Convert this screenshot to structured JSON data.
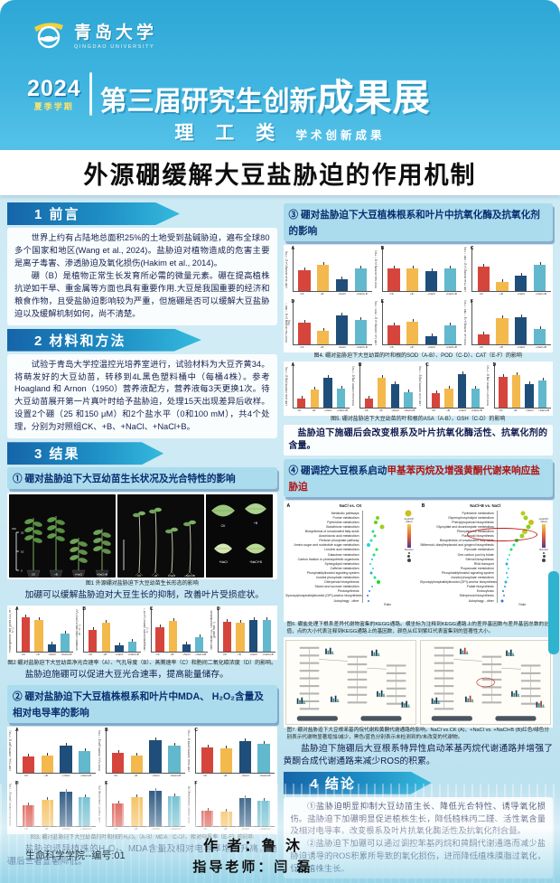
{
  "header": {
    "university_cn": "青岛大学",
    "university_en": "QINGDAO UNIVERSITY",
    "year": "2024",
    "semester": "夏季学期",
    "event_line": "第三届研究生创新",
    "event_line_big": "成果展",
    "category": "理 工 类",
    "category_sub": "学术创新成果"
  },
  "poster_title": "外源硼缓解大豆盐胁迫的作用机制",
  "intro": {
    "banner": "1 前言",
    "p1": "世界上约有占陆地总面积25%的土地受到盐碱胁迫，遍布全球80多个国家和地区(Wang et al., 2024)。盐胁迫对植物造成的危害主要是离子毒害、渗透胁迫及氧化损伤(Hakim et al., 2014)。",
    "p2": "硼（B）是植物正常生长发育所必需的微量元素。硼在提高植株抗逆如干旱、重金属等方面也具有重要作用.大豆是我国重要的经济和粮食作物，且受盐胁迫影响较为严重，但施硼是否可以缓解大豆盐胁迫以及缓解机制如何，尚不清楚。"
  },
  "methods": {
    "banner": "2 材料和方法",
    "p1": "试验于青岛大学控温控光培养室进行，试验材料为大豆齐黄34。将萌发好的大豆幼苗，转移到4L黑色塑料桶中（每桶4株）。参考Hoagland 和 Arnon（1950）营养液配方，营养液每3天更换1次。待大豆幼苗展开第一片真叶时给予盐胁迫，处理15天出现差异后收样。设置2个硼（25 和150 μM）和2个盐水平（0和100 mM），共4个处理，分别为对照组CK、+B、+NaCl、+NaCl+B。"
  },
  "results_banner": "3 结果",
  "treatments": [
    "CK",
    "+B",
    "+NaCl",
    "+NaCl+B"
  ],
  "r1": {
    "title": "① 硼对盐胁迫下大豆幼苗生长状况及光合特性的影响",
    "fig1_caption": "图1 外源硼对盐胁迫下大豆幼苗生长形态的影响",
    "note1": "加硼可以缓解盐胁迫对大豆生长的抑制，改善叶片受损症状。",
    "fig2_caption": "图2 硼对盐胁迫下大豆幼苗净光合速率（A）、气孔导度（B）、蒸腾速率（C）和胞间二氧化碳浓度（D）的影响。",
    "note2": "盐胁迫施硼可以促进大豆光合速率，提高能量储存。"
  },
  "r2": {
    "title": "② 硼对盐胁迫下大豆植株根系和叶片中MDA、 H₂O₂含量及相对电导率的影响",
    "fig3_caption": "图3. 硼对盐胁迫下大豆幼苗的叶和根的H₂O₂（A-B）MDA（C-D）、相对电导率（E-F）的影响",
    "note": "盐胁迫诱导植株的H₂O₂、MDA含量及相对电导率增加升高，施硼后三者显著降低。"
  },
  "r3": {
    "title": "③ 硼对盐胁迫下大豆植株根系和叶片中抗氧化酶及抗氧化剂的影响",
    "fig4_caption": "图4. 硼对盐胁迫下大豆幼苗的叶和根的SOD（A-B）、POD（C-D）、CAT（E-F）的影响",
    "fig5_caption": "图5. 硼对盐胁迫下大豆幼苗的叶和根的ASA（A-B）、GSH（C-D）的影响",
    "note": "盐胁迫下施硼后会改变根系及叶片抗氧化酶活性、抗氧化剂的含量。"
  },
  "r4": {
    "title_prefix": "④ 硼调控大豆根系启动",
    "title_red": "甲基苯丙烷及增强黄酮代谢来响应盐胁迫",
    "fig6_caption": "图6. 硼盐处理下根系差异代谢物富集的KEGG通路。横坐标为注释到KEGG通路上的差异基因数与差异基因总数的比值，点的大小代表注释到KEGG通路上的基因数，颜色从红到紫红代表富集到的显著性大小。",
    "fig7_caption": "图7. 硼对盐胁迫下大豆根苯基丙烷代谢和黄酮代谢通路的影响。NaCl vs.CK (A)、+NaCl vs. +NaCl+B (B)红色/绿色分别表示代谢物显著增加/减少，黑色/蓝色分别表示未检测到的/未改变的代谢物。",
    "note": "盐胁迫下施硼后大豆根系特异性启动苯基丙烷代谢通路并增强了黄酮合成代谢通路来减少ROS的积累。"
  },
  "conclusion": {
    "banner": "4 结论",
    "p1": "①盐胁迫明显抑制大豆幼苗生长、降低光合特性、诱导氧化损伤。盐胁迫下加硼明显促进植株生长，降低植株丙二醛、活性氧含量及相对电导率，改变根系及叶片抗氧化酶活性及抗氧化剂含量。",
    "p2": "②盐胁迫下加硼可以通过调控苯基丙烷和黄酮代谢通路而减少盐胁迫诱导的ROS积累所导致的氧化损伤，进而降低植株膜脂过氧化，促进植株生长。"
  },
  "footer": {
    "author_label": "作  者：",
    "author": "鲁 沐",
    "advisor_label": "指导老师：",
    "advisor": "闫 磊",
    "college": "生命科学学院--编号:01"
  },
  "treatment_colors": [
    "#d6453c",
    "#f3b94d",
    "#1f4e7a",
    "#62b8cc"
  ],
  "chart_data": [
    {
      "id": "fig2",
      "type": "bar",
      "categories": [
        "CK",
        "+B",
        "+NaCl",
        "+NaCl+B"
      ],
      "panels": [
        {
          "letter": "A",
          "ylabel": "Photosynthetic rate (μmol CO₂ m⁻² s⁻¹)",
          "ymax": 4,
          "values": [
            3.5,
            3.3,
            0.7,
            1.9
          ]
        },
        {
          "letter": "B",
          "ylabel": "Stomatal conductance (mol H₂O m⁻² s⁻¹)",
          "ymax": 0.08,
          "values": [
            0.045,
            0.06,
            0.013,
            0.02
          ]
        },
        {
          "letter": "C",
          "ylabel": "Transpiration rate (mmol H₂O m⁻² s⁻¹)",
          "ymax": 0.8,
          "values": [
            0.5,
            0.64,
            0.15,
            0.3
          ]
        },
        {
          "letter": "D",
          "ylabel": "Intercellular CO₂ concentration (μmol mol⁻¹)",
          "ymax": 400,
          "values": [
            310,
            295,
            330,
            330
          ]
        }
      ]
    },
    {
      "id": "fig3",
      "type": "bar",
      "categories": [
        "CK",
        "+B",
        "+NaCl",
        "+NaCl+B"
      ],
      "panels": [
        {
          "letter": "A",
          "ylabel": "Leaf H₂O₂ content (μM g⁻¹ FW)",
          "ymax": 10,
          "values": [
            4.2,
            4.4,
            7.0,
            5.6
          ]
        },
        {
          "letter": "B",
          "ylabel": "Root H₂O₂ content (μM g⁻¹ FW)",
          "ymax": 12.5,
          "values": [
            6.2,
            5.6,
            10.4,
            8.6
          ]
        },
        {
          "letter": "C",
          "ylabel": "Leaf MDA content (nmol g⁻¹ FW)",
          "ymax": 4,
          "values": [
            2.6,
            2.5,
            3.2,
            3.0
          ]
        },
        {
          "letter": "D",
          "ylabel": "Root MDA content (nmol g⁻¹ FW)",
          "ymax": 1.2,
          "values": [
            0.65,
            0.8,
            1.05,
            0.9
          ]
        },
        {
          "letter": "E",
          "ylabel": "Leaf relative conductivity (%)",
          "ymax": 30,
          "values": [
            17,
            22,
            27,
            23
          ]
        },
        {
          "letter": "F",
          "ylabel": "Root relative conductivity (%)",
          "ymax": 80,
          "values": [
            32,
            30,
            57,
            52
          ]
        }
      ]
    },
    {
      "id": "fig4",
      "type": "bar",
      "categories": [
        "CK",
        "+B",
        "+NaCl",
        "+NaCl+B"
      ],
      "panels": [
        {
          "letter": "A",
          "ylabel": "Leaf SOD activity (U g⁻¹ FW)",
          "ymax": 150,
          "values": [
            82,
            100,
            46,
            88
          ]
        },
        {
          "letter": "B",
          "ylabel": "Root SOD activity (U g⁻¹ FW)",
          "ymax": 150,
          "values": [
            88,
            86,
            78,
            86
          ]
        },
        {
          "letter": "C",
          "ylabel": "Leaf POD activity (U g⁻¹ min⁻¹ FW)",
          "ymax": 600,
          "values": [
            380,
            140,
            240,
            400
          ]
        },
        {
          "letter": "D",
          "ylabel": "Root POD activity (U g⁻¹ min⁻¹ FW)",
          "ymax": 3000,
          "values": [
            1700,
            1050,
            2250,
            1900
          ]
        },
        {
          "letter": "E",
          "ylabel": "Leaf CAT activity (U g⁻¹ min⁻¹ FW)",
          "ymax": 150,
          "values": [
            75,
            88,
            30,
            75
          ]
        },
        {
          "letter": "F",
          "ylabel": "Root CAT activity (U g⁻¹ min⁻¹ FW)",
          "ymax": 120,
          "values": [
            30,
            82,
            83,
            48
          ]
        }
      ]
    },
    {
      "id": "fig5",
      "type": "bar",
      "categories": [
        "CK",
        "+B",
        "+NaCl",
        "+NaCl+B"
      ],
      "panels": [
        {
          "letter": "A",
          "ylabel": "Leaf ASA content (mg g⁻¹ FW)",
          "ymax": 4,
          "values": [
            0.9,
            1.9,
            3.1,
            2.0
          ]
        },
        {
          "letter": "B",
          "ylabel": "Root ASA content (mg g⁻¹ FW)",
          "ymax": 2.5,
          "values": [
            0.6,
            1.9,
            1.5,
            1.0
          ]
        },
        {
          "letter": "C",
          "ylabel": "Leaf GSH content (mg g⁻¹ FW)",
          "ymax": 3,
          "values": [
            1.1,
            1.5,
            2.6,
            1.5
          ]
        },
        {
          "letter": "D",
          "ylabel": "Root GSH content (mg g⁻¹ FW)",
          "ymax": 2,
          "values": [
            1.6,
            1.7,
            1.2,
            1.4
          ]
        }
      ]
    },
    {
      "id": "fig6",
      "type": "scatter",
      "legend": {
        "color_label": "-log10(P-value)",
        "size_label": "Number"
      },
      "panels": [
        {
          "letter": "A",
          "title": "NaCl vs. CK",
          "xlabel": "Ratio",
          "pathways": [
            "Metabolic pathways",
            "Purine metabolism",
            "Pyrimidine metabolism",
            "Glutathione metabolism",
            "Biosynthesis of unsaturated fatty acids",
            "Arachidonic acid metabolism",
            "Pentose phosphate pathway",
            "Amino sugar and nucleotide sugar metabolism",
            "Linoleic acid metabolism",
            "Galactose metabolism",
            "Carbon fixation in photosynthetic organisms",
            "Sphingolipid metabolism",
            "Caffeine metabolism",
            "Phosphatidylinositol signaling system",
            "Inositol phosphate metabolism",
            "Diterpenoid biosynthesis",
            "Starch and sucrose metabolism",
            "Photosynthesis",
            "Glycosylphosphatidylinositol (GPI)-anchor biosynthesis",
            "Autophagy - other"
          ],
          "dot_x": [
            0.97,
            0.32,
            0.28,
            0.42,
            0.22,
            0.26,
            0.18,
            0.12,
            0.3,
            0.24,
            0.2,
            0.16,
            0.22,
            0.18,
            0.26,
            0.34,
            0.2,
            0.14,
            0.1,
            0.12
          ],
          "dot_size": [
            7,
            4,
            4,
            5,
            3,
            3,
            3,
            4,
            3,
            3,
            2,
            2,
            2,
            3,
            3,
            4,
            2,
            2,
            2,
            2
          ],
          "dot_heat": [
            0.95,
            0.8,
            0.75,
            0.85,
            0.5,
            0.55,
            0.4,
            0.35,
            0.6,
            0.5,
            0.3,
            0.35,
            0.4,
            0.3,
            0.5,
            0.65,
            0.3,
            0.25,
            0.2,
            0.2
          ]
        },
        {
          "letter": "B",
          "title": "NaCl+B vs. NaCl",
          "xlabel": "Ratio",
          "pathways": [
            "Pyrimidine metabolism",
            "Glycerophospholipid metabolism",
            "Phenylpropanoid biosynthesis",
            "Glyoxylate and dicarboxylate metabolism",
            "Phenylalanine metabolism",
            "Flavonoid biosynthesis",
            "Biosynthesis of unsaturated fatty acids",
            "Stilbenoid, diarylheptanoid and gingerol biosynthesis",
            "Pyruvate metabolism",
            "One carbon pool by folate",
            "Steroid biosynthesis",
            "RNA transport",
            "Propanoate metabolism",
            "Phosphatidylinositol signaling system",
            "Inositol phosphate metabolism",
            "Glycosylphosphatidylinositol (GPI)-anchor biosynthesis",
            "Folate biosynthesis",
            "Endocytosis",
            "Diterpenoid biosynthesis",
            "Autophagy - other"
          ],
          "dot_x": [
            0.55,
            0.6,
            0.72,
            0.65,
            0.58,
            0.52,
            0.4,
            0.35,
            0.3,
            0.25,
            0.22,
            0.2,
            0.24,
            0.2,
            0.22,
            0.18,
            0.15,
            0.12,
            0.14,
            0.1
          ],
          "dot_size": [
            5,
            5,
            6,
            5,
            6,
            5,
            4,
            3,
            3,
            2,
            2,
            3,
            2,
            2,
            2,
            3,
            2,
            2,
            2,
            3
          ],
          "dot_heat": [
            0.9,
            0.85,
            0.95,
            0.8,
            0.9,
            0.85,
            0.6,
            0.5,
            0.55,
            0.4,
            0.35,
            0.3,
            0.4,
            0.3,
            0.35,
            0.3,
            0.25,
            0.2,
            0.25,
            0.2
          ],
          "highlight_rows": [
            4,
            5
          ]
        }
      ]
    }
  ]
}
